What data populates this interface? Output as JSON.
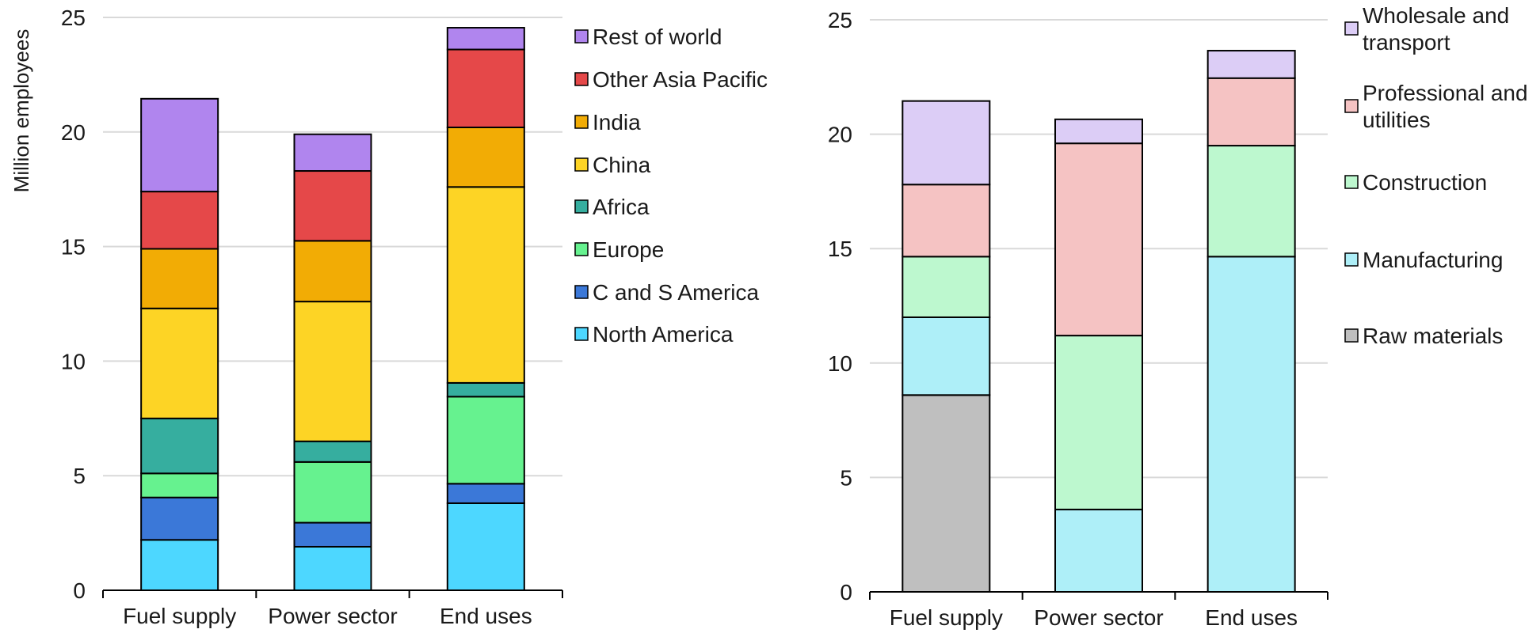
{
  "chart_data": [
    {
      "type": "bar",
      "stacked": true,
      "categories": [
        "Fuel supply",
        "Power sector",
        "End uses"
      ],
      "ylabel": "Million employees",
      "ylim": [
        0,
        25
      ],
      "yticks": [
        0,
        5,
        10,
        15,
        20,
        25
      ],
      "grid": true,
      "legend_position": "right",
      "series": [
        {
          "name": "North America",
          "color": "#4dd7ff",
          "values": [
            2.2,
            1.9,
            3.8
          ]
        },
        {
          "name": "C and S America",
          "color": "#3b78d8",
          "values": [
            1.85,
            1.05,
            0.85
          ]
        },
        {
          "name": "Europe",
          "color": "#66f28f",
          "values": [
            1.05,
            2.65,
            3.8
          ]
        },
        {
          "name": "Africa",
          "color": "#36ae9f",
          "values": [
            2.4,
            0.9,
            0.6
          ]
        },
        {
          "name": "China",
          "color": "#fdd425",
          "values": [
            4.8,
            6.1,
            8.55
          ]
        },
        {
          "name": "India",
          "color": "#f2ac05",
          "values": [
            2.6,
            2.65,
            2.6
          ]
        },
        {
          "name": "Other Asia Pacific",
          "color": "#e54849",
          "values": [
            2.5,
            3.05,
            3.4
          ]
        },
        {
          "name": "Rest of world",
          "color": "#b085ee",
          "values": [
            4.05,
            1.6,
            0.95
          ]
        }
      ]
    },
    {
      "type": "bar",
      "stacked": true,
      "categories": [
        "Fuel supply",
        "Power sector",
        "End uses"
      ],
      "ylabel": "",
      "ylim": [
        0,
        25
      ],
      "yticks": [
        0,
        5,
        10,
        15,
        20,
        25
      ],
      "grid": true,
      "legend_position": "right",
      "series": [
        {
          "name": "Raw materials",
          "color": "#bfbfbf",
          "values": [
            8.6,
            0,
            0
          ]
        },
        {
          "name": "Manufacturing",
          "color": "#aeeff8",
          "values": [
            3.4,
            3.6,
            14.65
          ]
        },
        {
          "name": "Construction",
          "color": "#bdf8cf",
          "values": [
            2.65,
            7.6,
            4.85
          ]
        },
        {
          "name": "Professional and utilities",
          "color": "#f5c3c3",
          "values": [
            3.15,
            8.4,
            2.95
          ]
        },
        {
          "name": "Wholesale and transport",
          "color": "#dccdf6",
          "values": [
            3.65,
            1.05,
            1.2
          ]
        }
      ]
    }
  ]
}
